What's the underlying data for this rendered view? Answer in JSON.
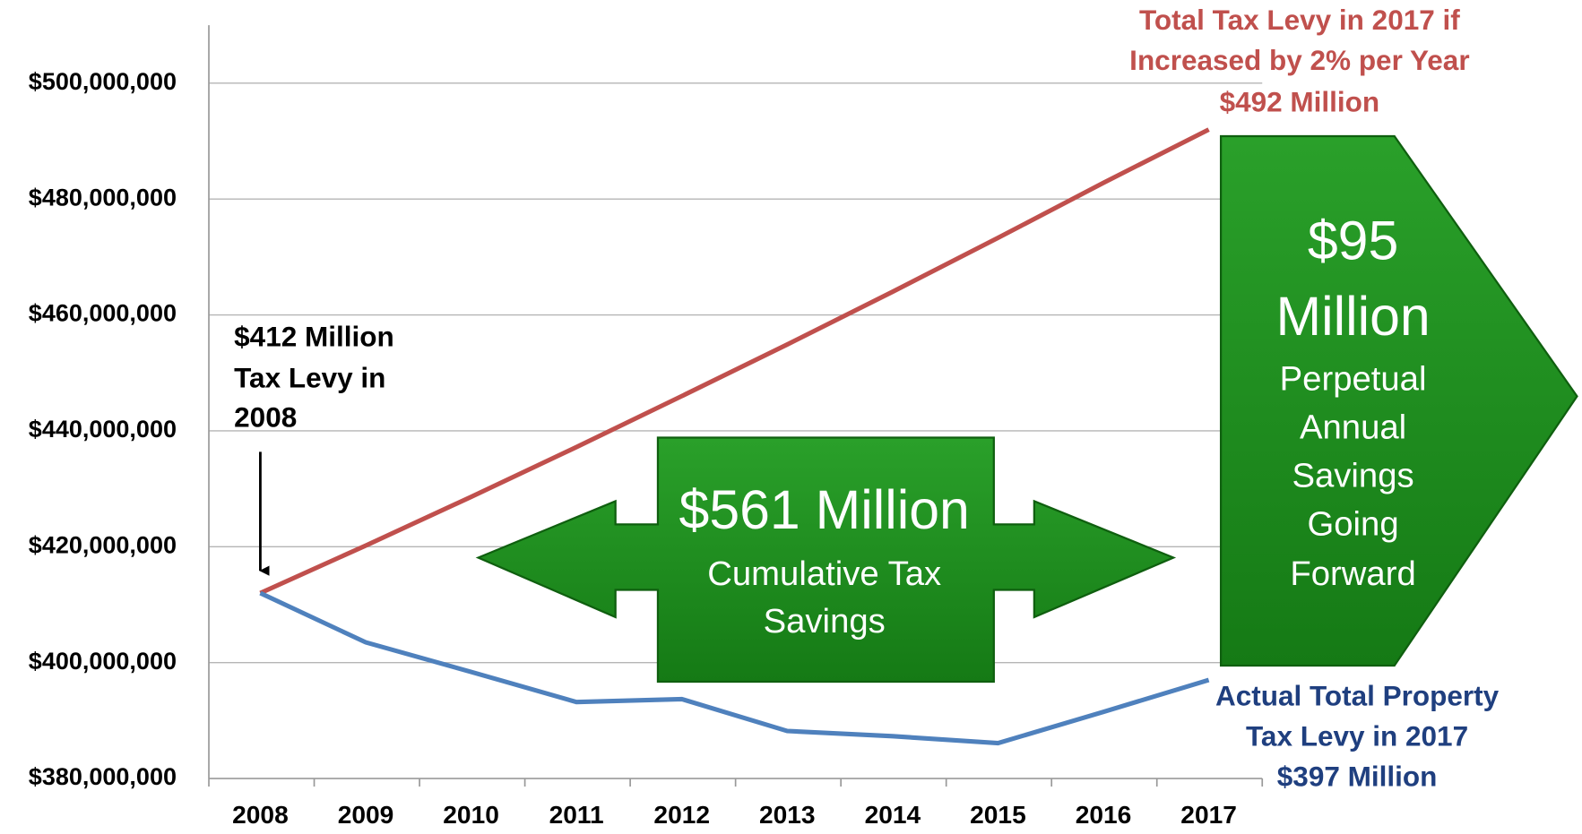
{
  "chart_data": {
    "type": "line",
    "categories": [
      "2008",
      "2009",
      "2010",
      "2011",
      "2012",
      "2013",
      "2014",
      "2015",
      "2016",
      "2017"
    ],
    "series": [
      {
        "color": "#c0504d",
        "values": [
          412000000,
          420200000,
          428600000,
          437200000,
          446000000,
          454900000,
          464000000,
          473300000,
          482800000,
          492000000
        ]
      },
      {
        "color": "#4f81bd",
        "values": [
          412000000,
          403500000,
          398400000,
          393200000,
          393700000,
          388200000,
          387300000,
          386100000,
          391500000,
          397000000
        ]
      }
    ],
    "ylim": [
      380000000,
      510000000
    ],
    "yticks": [
      {
        "value": 380000000,
        "label": "$380,000,000"
      },
      {
        "value": 400000000,
        "label": "$400,000,000"
      },
      {
        "value": 420000000,
        "label": "$420,000,000"
      },
      {
        "value": 440000000,
        "label": "$440,000,000"
      },
      {
        "value": 460000000,
        "label": "$460,000,000"
      },
      {
        "value": 480000000,
        "label": "$480,000,000"
      },
      {
        "value": 500000000,
        "label": "$500,000,000"
      }
    ],
    "grid": true,
    "annotations": [
      {
        "lines": [
          "Total Tax Levy in 2017 if",
          "Increased by 2% per Year",
          "$492 Million"
        ],
        "color": "#c0504d"
      },
      {
        "lines": [
          "$412 Million",
          "Tax Levy in",
          "2008"
        ],
        "color": "#000000"
      },
      {
        "lines": [
          "Actual Total Property",
          "Tax Levy in 2017",
          "$397 Million"
        ],
        "color": "#1f3f7f"
      },
      {
        "lines": [
          "$561 Million",
          "Cumulative Tax",
          "Savings"
        ],
        "color": "#ffffff"
      },
      {
        "lines": [
          "$95",
          "Million",
          "Perpetual",
          "Annual",
          "Savings",
          "Going",
          "Forward"
        ],
        "color": "#ffffff"
      }
    ]
  }
}
